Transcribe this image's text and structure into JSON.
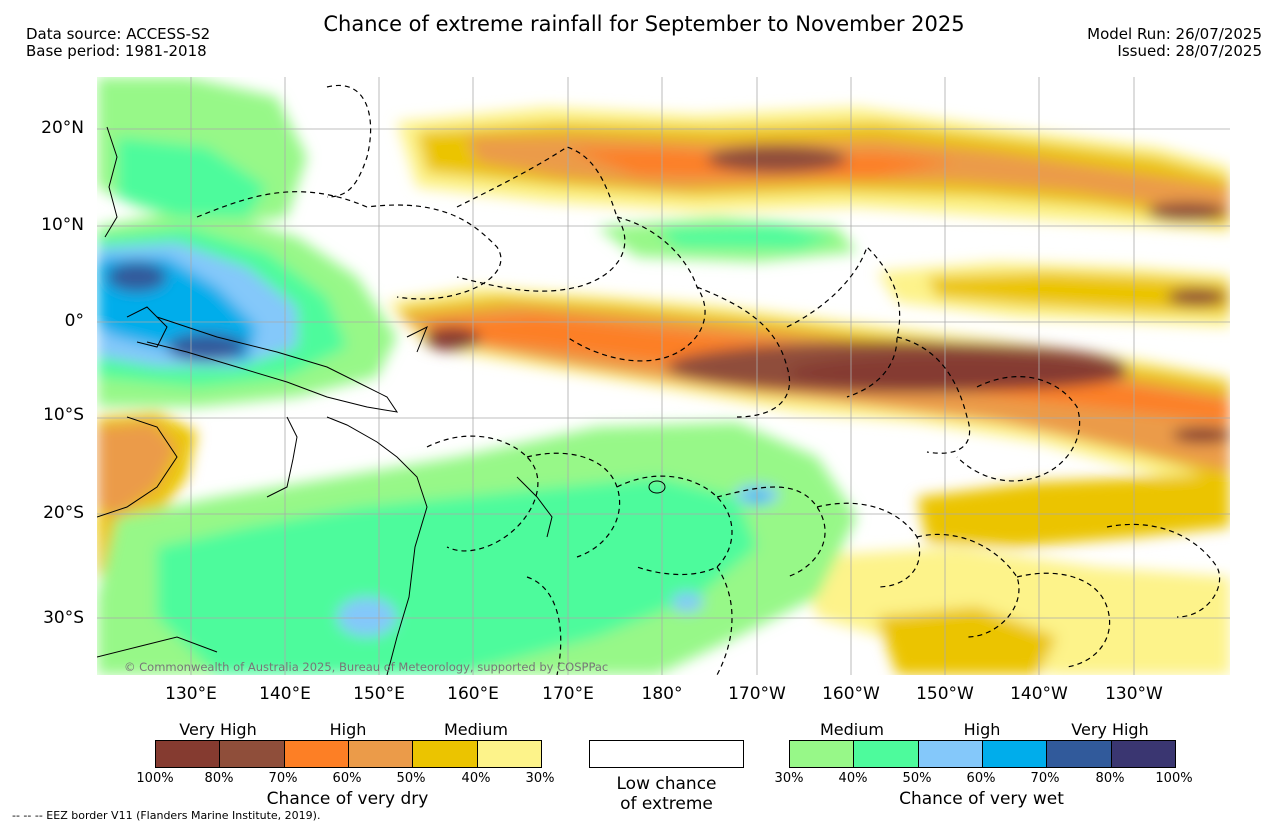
{
  "header": {
    "title": "Chance of extreme rainfall for September to November 2025",
    "data_source": "Data source: ACCESS-S2",
    "base_period": "Base period: 1981-2018",
    "model_run": "Model Run: 26/07/2025",
    "issued": "Issued: 28/07/2025"
  },
  "map": {
    "lat_labels": [
      "20°N",
      "10°N",
      "0°",
      "10°S",
      "20°S",
      "30°S"
    ],
    "lon_labels": [
      "130°E",
      "140°E",
      "150°E",
      "160°E",
      "170°E",
      "180°",
      "170°W",
      "160°W",
      "150°W",
      "140°W",
      "130°W"
    ],
    "credit": "© Commonwealth of Australia 2025, Bureau of Meteorology, supported by COSPPac",
    "layers": [
      "land-outline-icon",
      "eez-border-icon",
      "graticule"
    ]
  },
  "legend": {
    "dry": {
      "categories": [
        "Very High",
        "High",
        "Medium"
      ],
      "colors": [
        "#853b30",
        "#8f4e3a",
        "#fd7f25",
        "#eb9b49",
        "#ebc400",
        "#fdf38a"
      ],
      "ticks": [
        "100%",
        "80%",
        "70%",
        "60%",
        "50%",
        "40%",
        "30%"
      ],
      "title": "Chance of very dry"
    },
    "low": {
      "line1": "Low chance",
      "line2": "of extreme",
      "color": "#ffffff"
    },
    "wet": {
      "categories": [
        "Medium",
        "High",
        "Very High"
      ],
      "colors": [
        "#97f888",
        "#4dfb9c",
        "#84c8fa",
        "#00adeb",
        "#315a9b",
        "#3a3671"
      ],
      "ticks": [
        "30%",
        "40%",
        "50%",
        "60%",
        "70%",
        "80%",
        "100%"
      ],
      "title": "Chance of very wet"
    }
  },
  "footer": {
    "eez_note": "--  --  -- EEZ border V11 (Flanders Marine Institute, 2019)."
  }
}
